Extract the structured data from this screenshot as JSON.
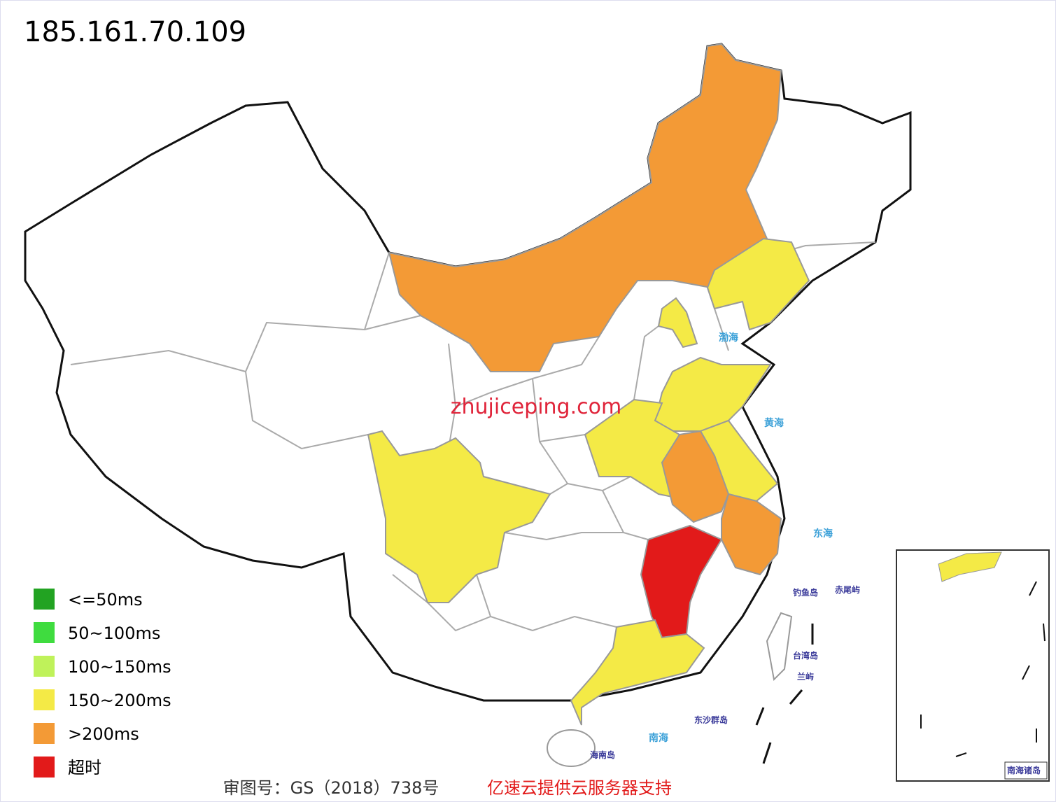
{
  "title": "185.161.70.109",
  "watermark": "zhujiceping.com",
  "legend": [
    {
      "label": "<=50ms",
      "color": "#22a322"
    },
    {
      "label": "50~100ms",
      "color": "#3fdc3f"
    },
    {
      "label": "100~150ms",
      "color": "#bff25a"
    },
    {
      "label": "150~200ms",
      "color": "#f4ea46"
    },
    {
      "label": ">200ms",
      "color": "#f39a36"
    },
    {
      "label": "超时",
      "color": "#e21a1a"
    }
  ],
  "footer": {
    "approval": "审图号：GS（2018）738号",
    "sponsor": "亿速云提供云服务器支持"
  },
  "map_labels": [
    "渤海",
    "黄海",
    "东海",
    "南海",
    "钓鱼岛",
    "赤尾屿",
    "台湾岛",
    "兰屿",
    "东沙群岛",
    "海南岛",
    "南海诸岛"
  ]
}
